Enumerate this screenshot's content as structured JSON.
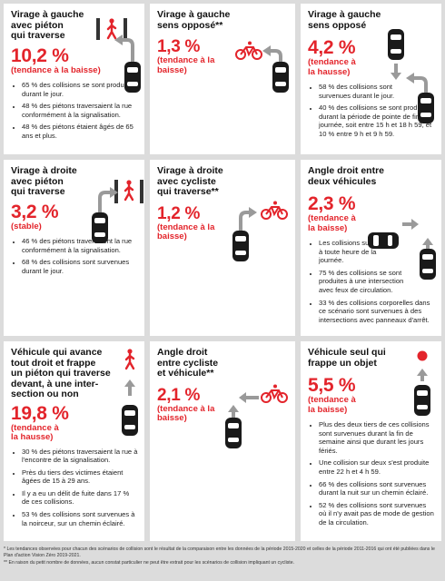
{
  "cards": [
    {
      "title": [
        "Virage à gauche",
        "avec piéton",
        "qui traverse"
      ],
      "pct": "10,2 %",
      "trend": "(tendance à la baisse)",
      "bullets": [
        "65 % des collisions se sont produites durant le jour.",
        "48 % des piétons traversaient la rue conformément à la signalisation.",
        "48 % des piétons étaient âgés de 65 ans et plus."
      ]
    },
    {
      "title": [
        "Virage à gauche",
        "sens opposé**"
      ],
      "pct": "1,3 %",
      "trend": "(tendance à la baisse)",
      "bullets": []
    },
    {
      "title": [
        "Virage à gauche",
        "sens opposé"
      ],
      "pct": "4,2 %",
      "trend": "(tendance à la hausse)",
      "bullets": [
        "58 % des collisions sont survenues durant le jour.",
        "40 % des collisions se sont produites durant la période de pointe de fin de journée, soit entre 15 h et 18 h 59, et 10 % entre 9 h et 9 h 59."
      ]
    },
    {
      "title": [
        "Virage à droite",
        "avec piéton",
        "qui traverse"
      ],
      "pct": "3,2 %",
      "trend": "(stable)",
      "bullets": [
        "46 % des piétons traversaient la rue conformément à la signalisation.",
        "68 % des collisions sont survenues durant le jour."
      ]
    },
    {
      "title": [
        "Virage à droite",
        "avec cycliste",
        "qui traverse**"
      ],
      "pct": "1,2 %",
      "trend": "(tendance à la baisse)",
      "bullets": []
    },
    {
      "title": [
        "Angle droit entre",
        "deux véhicules"
      ],
      "pct": "2,3 %",
      "trend": "(tendance à la baisse)",
      "bullets": [
        "Les collisions surviennent à toute heure de la journée.",
        "75 % des collisions se sont produites à une intersection avec feux de circulation.",
        "33 % des collisions corporelles dans ce scénario sont survenues à des intersections avec panneaux d'arrêt."
      ]
    },
    {
      "title": [
        "Véhicule qui avance",
        "tout droit et frappe",
        "un piéton qui traverse",
        "devant, à une inter-",
        "section ou non"
      ],
      "pct": "19,8 %",
      "trend": "(tendance à la hausse)",
      "bullets": [
        "30 % des piétons traversaient la rue à l'encontre de la signalisation.",
        "Près du tiers des victimes étaient âgées de 15 à 29 ans.",
        "Il y a eu un délit de fuite dans 17 % de ces collisions.",
        "53 % des collisions sont survenues à la noirceur, sur un chemin éclairé."
      ]
    },
    {
      "title": [
        "Angle droit",
        "entre cycliste",
        "et véhicule**"
      ],
      "pct": "2,1 %",
      "trend": "(tendance à la baisse)",
      "bullets": []
    },
    {
      "title": [
        "Véhicule seul qui",
        "frappe un objet"
      ],
      "pct": "5,5 %",
      "trend": "(tendance à la baisse)",
      "bullets": [
        "Plus des deux tiers de ces collisions sont survenues durant la fin de semaine ainsi que durant les jours fériés.",
        "Une collision sur deux s'est produite entre 22 h et 4 h 59.",
        "66 % des collisions sont survenues durant la nuit sur un chemin éclairé.",
        "52 % des collisions sont survenues où il n'y avait pas de mode de gestion de la circulation."
      ]
    }
  ],
  "footnotes": [
    "* Les tendances observées pour chacun des scénarios de collision sont le résultat de la comparaison entre les données de la période 2015-2020 et celles de la période 2011-2016 qui ont été publiées dans le Plan d'action Vision Zéro 2019-2021.",
    "** En raison du petit nombre de données, aucun constat particulier ne peut être extrait pour les scénarios de collision impliquant un cycliste."
  ],
  "colors": {
    "accent": "#e3242b",
    "background": "#dcdcdc",
    "arrow": "#9a9a9a",
    "car": "#1a1a1a"
  }
}
